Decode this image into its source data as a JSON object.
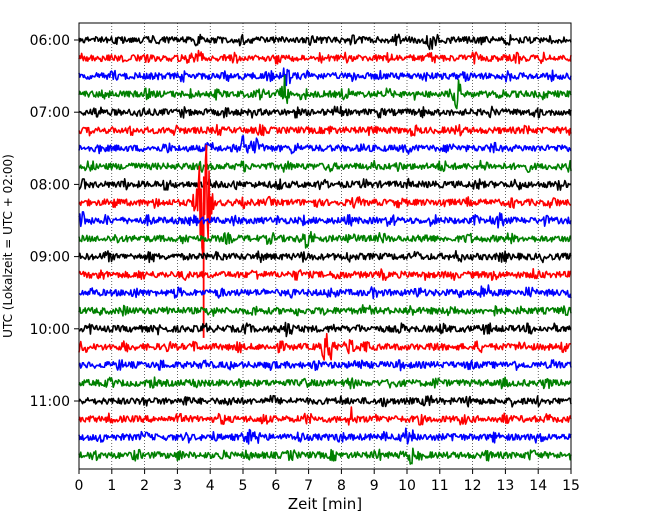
{
  "chart_data": {
    "type": "line",
    "title": "",
    "xlabel": "Zeit  [min]",
    "ylabel": "UTC (Lokalzeit = UTC + 02:00)",
    "xlim": [
      0,
      15
    ],
    "x_ticks": [
      "0",
      "1",
      "2",
      "3",
      "4",
      "5",
      "6",
      "7",
      "8",
      "9",
      "10",
      "11",
      "12",
      "13",
      "14",
      "15"
    ],
    "y_tick_labels": [
      "06:00",
      "07:00",
      "08:00",
      "09:00",
      "10:00",
      "11:00"
    ],
    "grid": "vertical dotted",
    "trace_colors": [
      "#000000",
      "#ff0000",
      "#0000ff",
      "#008000"
    ],
    "trace_count": 24,
    "minutes_per_trace": 15,
    "series": [
      {
        "start": "06:00",
        "color": "#000000",
        "events": [
          {
            "min": 10.7,
            "amp": 0.9
          }
        ]
      },
      {
        "start": "06:15",
        "color": "#ff0000",
        "events": [
          {
            "min": 3.7,
            "amp": 0.5
          }
        ]
      },
      {
        "start": "06:30",
        "color": "#0000ff",
        "events": [
          {
            "min": 6.3,
            "amp": 0.9
          }
        ]
      },
      {
        "start": "06:45",
        "color": "#008000",
        "events": [
          {
            "min": 6.25,
            "amp": 1.1
          },
          {
            "min": 11.5,
            "amp": 1.2
          }
        ]
      },
      {
        "start": "07:00",
        "color": "#000000",
        "events": []
      },
      {
        "start": "07:15",
        "color": "#ff0000",
        "events": []
      },
      {
        "start": "07:30",
        "color": "#0000ff",
        "events": [
          {
            "min": 5.0,
            "amp": 0.8
          },
          {
            "min": 5.4,
            "amp": 0.5
          }
        ]
      },
      {
        "start": "07:45",
        "color": "#008000",
        "events": []
      },
      {
        "start": "08:00",
        "color": "#000000",
        "events": []
      },
      {
        "start": "08:15",
        "color": "#ff0000",
        "events": [
          {
            "min": 3.8,
            "amp": 7.5
          }
        ]
      },
      {
        "start": "08:30",
        "color": "#0000ff",
        "events": [
          {
            "min": 0.1,
            "amp": 0.6
          },
          {
            "min": 12.8,
            "amp": 0.6
          }
        ]
      },
      {
        "start": "08:45",
        "color": "#008000",
        "events": [
          {
            "min": 6.9,
            "amp": 0.6
          },
          {
            "min": 8.3,
            "amp": 0.6
          }
        ]
      },
      {
        "start": "09:00",
        "color": "#000000",
        "events": []
      },
      {
        "start": "09:15",
        "color": "#ff0000",
        "events": []
      },
      {
        "start": "09:30",
        "color": "#0000ff",
        "events": [
          {
            "min": 12.3,
            "amp": 0.6
          }
        ]
      },
      {
        "start": "09:45",
        "color": "#008000",
        "events": []
      },
      {
        "start": "10:00",
        "color": "#000000",
        "events": [
          {
            "min": 6.3,
            "amp": 0.8
          }
        ]
      },
      {
        "start": "10:15",
        "color": "#ff0000",
        "events": [
          {
            "min": 7.6,
            "amp": 1.6
          },
          {
            "min": 8.3,
            "amp": 0.7
          }
        ]
      },
      {
        "start": "10:30",
        "color": "#0000ff",
        "events": []
      },
      {
        "start": "10:45",
        "color": "#008000",
        "events": []
      },
      {
        "start": "11:00",
        "color": "#000000",
        "events": []
      },
      {
        "start": "11:15",
        "color": "#ff0000",
        "events": [
          {
            "min": 8.3,
            "amp": 0.7
          }
        ]
      },
      {
        "start": "11:30",
        "color": "#0000ff",
        "events": [
          {
            "min": 5.2,
            "amp": 0.6
          },
          {
            "min": 10.0,
            "amp": 0.6
          }
        ]
      },
      {
        "start": "11:45",
        "color": "#008000",
        "events": [
          {
            "min": 10.1,
            "amp": 0.6
          }
        ]
      }
    ]
  }
}
